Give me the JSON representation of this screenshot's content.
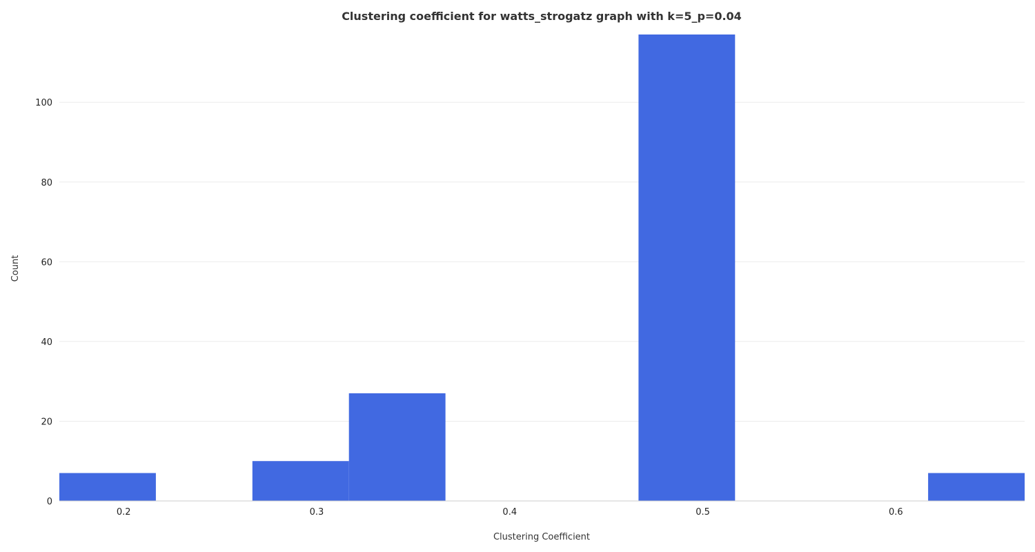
{
  "chart_data": {
    "type": "bar",
    "title": "Clustering coefficient for watts_strogatz graph with k=5_p=0.04",
    "xlabel": "Clustering Coefficient",
    "ylabel": "Count",
    "bin_width": 0.05,
    "bins": [
      {
        "start": 0.1667,
        "end": 0.2167,
        "count": 7
      },
      {
        "start": 0.2167,
        "end": 0.2667,
        "count": 0
      },
      {
        "start": 0.2667,
        "end": 0.3167,
        "count": 10
      },
      {
        "start": 0.3167,
        "end": 0.3667,
        "count": 27
      },
      {
        "start": 0.3667,
        "end": 0.4167,
        "count": 0
      },
      {
        "start": 0.4167,
        "end": 0.4667,
        "count": 0
      },
      {
        "start": 0.4667,
        "end": 0.5167,
        "count": 117
      },
      {
        "start": 0.5167,
        "end": 0.5667,
        "count": 0
      },
      {
        "start": 0.5667,
        "end": 0.6167,
        "count": 0
      },
      {
        "start": 0.6167,
        "end": 0.6667,
        "count": 7
      }
    ],
    "xlim": [
      0.1667,
      0.6667
    ],
    "ylim": [
      0,
      117
    ],
    "x_ticks": [
      0.2,
      0.3,
      0.4,
      0.5,
      0.6
    ],
    "x_tick_labels": [
      "0.2",
      "0.3",
      "0.4",
      "0.5",
      "0.6"
    ],
    "y_ticks": [
      0,
      20,
      40,
      60,
      80,
      100
    ],
    "y_tick_labels": [
      "0",
      "20",
      "40",
      "60",
      "80",
      "100"
    ],
    "grid": "horizontal",
    "bar_color": "#4169e1"
  }
}
